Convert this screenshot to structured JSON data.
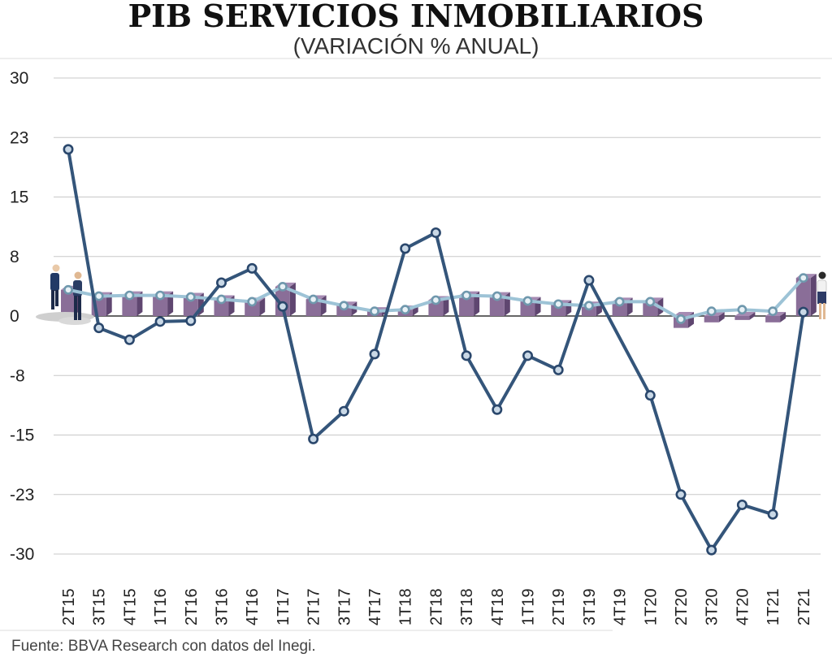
{
  "chart_data": {
    "type": "line",
    "title": "PIB SERVICIOS INMOBILIARIOS",
    "subtitle": "(VARIACIÓN % ANUAL)",
    "source": "Fuente: BBVA Research con datos del Inegi.",
    "categories": [
      "2T15",
      "3T15",
      "4T15",
      "1T16",
      "2T16",
      "3T16",
      "4T16",
      "1T17",
      "2T17",
      "3T17",
      "4T17",
      "1T18",
      "2T18",
      "3T18",
      "4T18",
      "1T19",
      "2T19",
      "3T19",
      "4T19",
      "1T20",
      "2T20",
      "3T20",
      "4T20",
      "1T21",
      "2T21"
    ],
    "yticks": [
      "30",
      "23",
      "15",
      "8",
      "0",
      "-8",
      "-15",
      "-23",
      "-30"
    ],
    "ytick_values": [
      30,
      22.5,
      15,
      7.5,
      0,
      -7.5,
      -15,
      -22.5,
      -30
    ],
    "ylim": [
      -30,
      30
    ],
    "grid": true,
    "series": [
      {
        "values": [
          21.0,
          -1.5,
          -3.0,
          -0.7,
          -0.6,
          4.2,
          6.0,
          1.2,
          -15.5,
          -12.0,
          -4.8,
          8.5,
          10.5,
          -5.0,
          -11.8,
          -5.0,
          -6.8,
          4.5,
          null,
          -10.0,
          -22.5,
          -29.5,
          -23.8,
          -25.0,
          0.5
        ],
        "color": "#34557a"
      },
      {
        "values": [
          3.3,
          2.5,
          2.6,
          2.6,
          2.4,
          2.1,
          1.8,
          3.7,
          2.1,
          1.3,
          0.6,
          0.8,
          2.0,
          2.6,
          2.5,
          1.9,
          1.5,
          1.3,
          1.8,
          1.8,
          -0.4,
          0.6,
          0.8,
          0.6,
          4.8
        ],
        "color": "#9dc3d6"
      }
    ],
    "bars": {
      "values": [
        3.3,
        2.5,
        2.6,
        2.6,
        2.4,
        2.1,
        1.8,
        3.7,
        2.1,
        1.3,
        0.6,
        0.8,
        2.0,
        2.6,
        2.5,
        1.9,
        1.5,
        1.3,
        1.8,
        1.8,
        -1.5,
        -0.8,
        -0.5,
        -0.8,
        4.8
      ],
      "front_color": "#8a6e98",
      "side_color": "#5f4670"
    }
  }
}
